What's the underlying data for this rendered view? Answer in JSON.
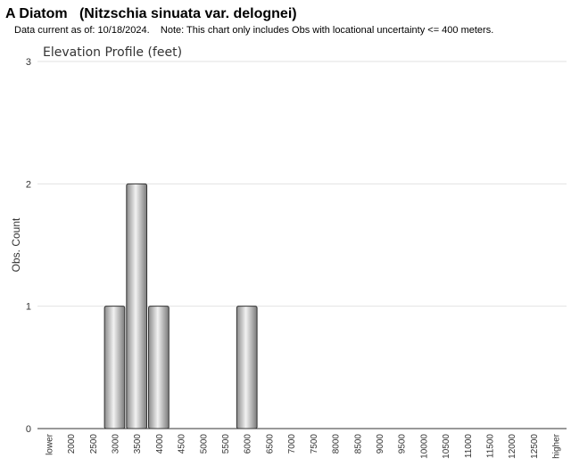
{
  "chart_data": {
    "type": "bar",
    "page_title": "A Diatom   (Nitzschia sinuata var. delognei)",
    "subtitle": "Data current as of: 10/18/2024.    Note: This chart only includes Obs with locational uncertainty <= 400 meters.",
    "title": "Elevation Profile (feet)",
    "y_label": "Obs. Count",
    "categories": [
      "lower",
      "2000",
      "2500",
      "3000",
      "3500",
      "4000",
      "4500",
      "5000",
      "5500",
      "6000",
      "6500",
      "7000",
      "7500",
      "8000",
      "8500",
      "9000",
      "9500",
      "10000",
      "10500",
      "11000",
      "11500",
      "12000",
      "12500",
      "higher"
    ],
    "values": [
      0,
      0,
      0,
      1,
      2,
      1,
      0,
      0,
      0,
      1,
      0,
      0,
      0,
      0,
      0,
      0,
      0,
      0,
      0,
      0,
      0,
      0,
      0,
      0
    ],
    "color": "#b0b0b0",
    "ylim": [
      0,
      3
    ],
    "yticks": [
      0,
      1,
      2,
      3
    ],
    "grid": true
  }
}
